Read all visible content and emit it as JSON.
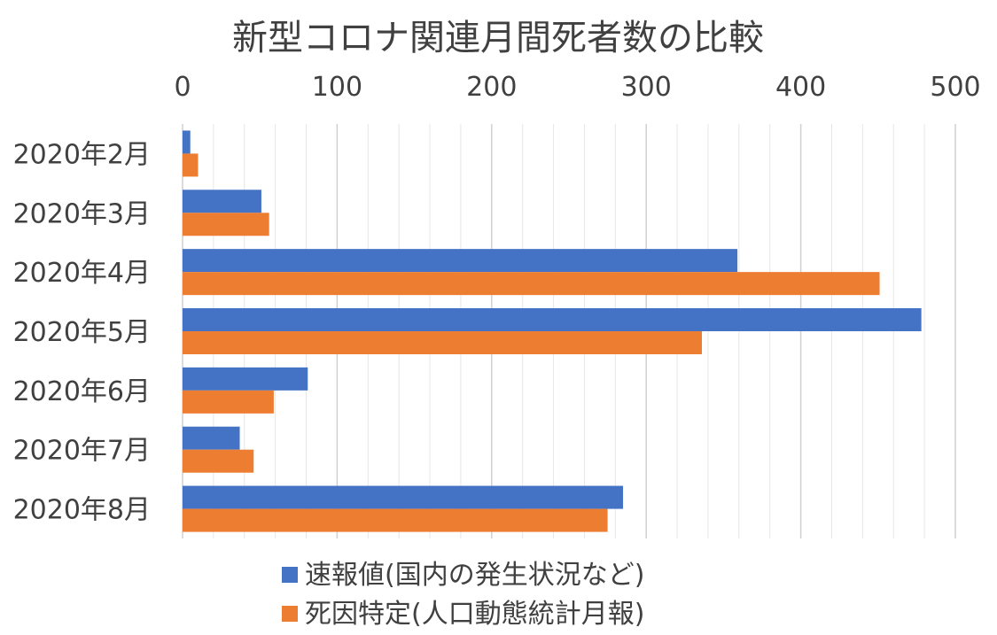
{
  "chart_data": {
    "type": "bar",
    "orientation": "horizontal",
    "title": "新型コロナ関連月間死者数の比較",
    "xlabel": "",
    "ylabel": "",
    "xlim": [
      0,
      500
    ],
    "ticks": [
      0,
      100,
      200,
      300,
      400,
      500
    ],
    "grid": true,
    "legend_position": "bottom",
    "categories": [
      "2020年2月",
      "2020年3月",
      "2020年4月",
      "2020年5月",
      "2020年6月",
      "2020年7月",
      "2020年8月"
    ],
    "series": [
      {
        "name": "速報値(国内の発生状況など)",
        "color": "#4472C4",
        "values": [
          5,
          51,
          359,
          478,
          81,
          37,
          285
        ]
      },
      {
        "name": "死因特定(人口動態統計月報)",
        "color": "#ED7D31",
        "values": [
          10,
          56,
          451,
          336,
          59,
          46,
          275
        ]
      }
    ]
  }
}
